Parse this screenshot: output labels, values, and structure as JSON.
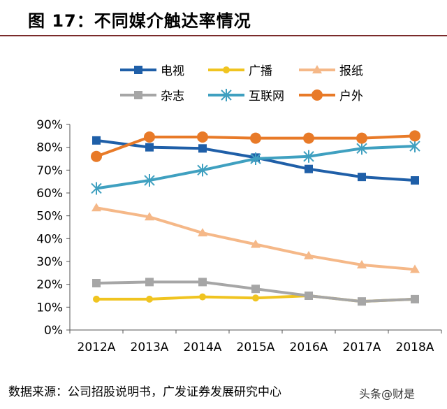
{
  "header": {
    "title": "图 17：不同媒介触达率情况"
  },
  "footer": {
    "source": "数据来源：公司招股说明书，广发证券发展研究中心",
    "watermark": "头条@财是"
  },
  "chart_data": {
    "type": "line",
    "title": "不同媒介触达率情况",
    "xlabel": "",
    "ylabel": "",
    "categories": [
      "2012A",
      "2013A",
      "2014A",
      "2015A",
      "2016A",
      "2017A",
      "2018A"
    ],
    "yticks": [
      "0%",
      "10%",
      "20%",
      "30%",
      "40%",
      "50%",
      "60%",
      "70%",
      "80%",
      "90%"
    ],
    "ylim": [
      0,
      90
    ],
    "grid": false,
    "legend": "top",
    "series": [
      {
        "name": "电视",
        "values": [
          83,
          80,
          79.5,
          75.5,
          70.5,
          67,
          65.5
        ],
        "color": "#1f5fa8",
        "marker": "square"
      },
      {
        "name": "广播",
        "values": [
          13.5,
          13.5,
          14.5,
          14,
          15,
          12.5,
          13.5
        ],
        "color": "#f0c420",
        "marker": "circle"
      },
      {
        "name": "报纸",
        "values": [
          53.5,
          49.5,
          42.5,
          37.5,
          32.5,
          28.5,
          26.5
        ],
        "color": "#f5b888",
        "marker": "triangle"
      },
      {
        "name": "杂志",
        "values": [
          20.5,
          21,
          21,
          18,
          15,
          12.5,
          13.5
        ],
        "color": "#a6a6a6",
        "marker": "square"
      },
      {
        "name": "互联网",
        "values": [
          62,
          65.5,
          70,
          75,
          76,
          79.5,
          80.5
        ],
        "color": "#3fa0c0",
        "marker": "star"
      },
      {
        "name": "户外",
        "values": [
          76,
          84.5,
          84.5,
          84,
          84,
          84,
          85
        ],
        "color": "#e87a28",
        "marker": "circle"
      }
    ]
  }
}
